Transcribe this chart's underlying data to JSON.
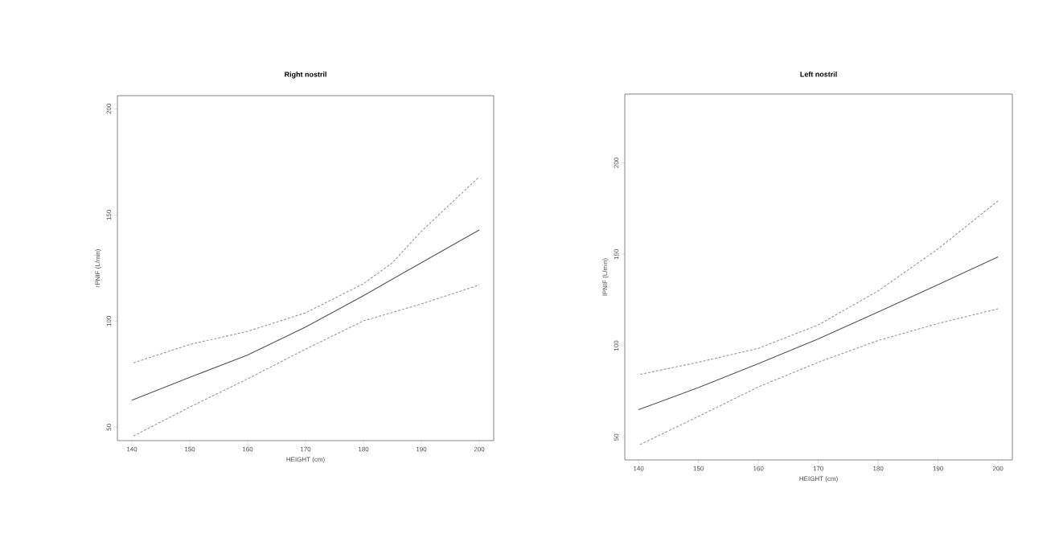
{
  "chart_data": [
    {
      "type": "line",
      "title": "Right nostril",
      "xlabel": "HEIGHT (cm)",
      "ylabel": "rPNIF (L/min)",
      "xlim": [
        137.5,
        202.5
      ],
      "ylim": [
        43.7,
        206.2
      ],
      "xticks": [
        140,
        150,
        160,
        170,
        180,
        190,
        200
      ],
      "yticks": [
        50,
        100,
        150,
        200
      ],
      "series": [
        {
          "color": "#555555",
          "line_style": "solid",
          "x": [
            140,
            150,
            160,
            170,
            180,
            190,
            200
          ],
          "values": [
            62.7,
            73.5,
            84,
            97.2,
            112,
            127.5,
            142.9
          ]
        },
        {
          "color": "#999999",
          "line_style": "dashed",
          "x": [
            140,
            150,
            160,
            170,
            180,
            185,
            190,
            200
          ],
          "values": [
            80.1,
            89,
            95.2,
            103.9,
            117.6,
            127.5,
            142.3,
            168
          ]
        },
        {
          "color": "#999999",
          "line_style": "dashed",
          "x": [
            140,
            150,
            160,
            170,
            180,
            190,
            200
          ],
          "values": [
            45.5,
            59.5,
            72.8,
            86.8,
            100.1,
            108.1,
            117
          ]
        }
      ]
    },
    {
      "type": "line",
      "title": "Left nostril",
      "xlabel": "HEIGHT (cm)",
      "ylabel": "lPNIF (L/min)",
      "xlim": [
        137.7,
        202.4
      ],
      "ylim": [
        37.6,
        237.6
      ],
      "xticks": [
        140,
        150,
        160,
        170,
        180,
        190,
        200
      ],
      "yticks": [
        50,
        100,
        150,
        200
      ],
      "series": [
        {
          "color": "#555555",
          "line_style": "solid",
          "x": [
            140,
            150,
            160,
            170,
            180,
            190,
            200
          ],
          "values": [
            65.1,
            77.2,
            90.2,
            103.7,
            118.5,
            133.4,
            148.6
          ]
        },
        {
          "color": "#999999",
          "line_style": "dashed",
          "x": [
            140,
            150,
            160,
            170,
            180,
            190,
            200
          ],
          "values": [
            84.2,
            91,
            98.6,
            111.4,
            130,
            153,
            179.2
          ]
        },
        {
          "color": "#999999",
          "line_style": "dashed",
          "x": [
            140,
            150,
            160,
            170,
            180,
            190,
            200
          ],
          "values": [
            45.6,
            61.4,
            77.5,
            91,
            102.9,
            112.2,
            120.2
          ]
        }
      ]
    }
  ]
}
